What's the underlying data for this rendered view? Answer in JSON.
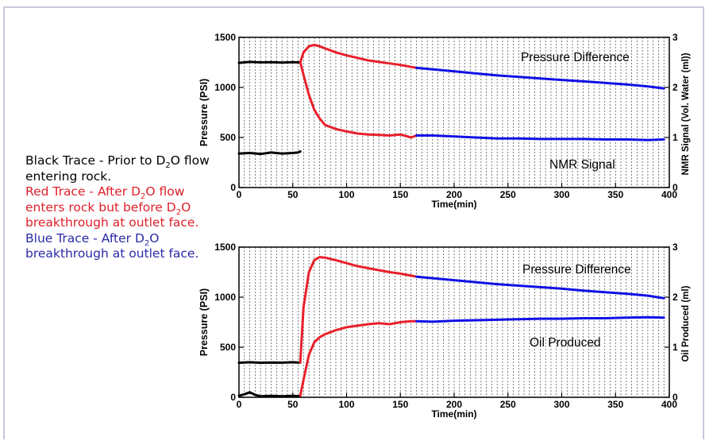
{
  "legend": {
    "entries": [
      {
        "color": "#000000",
        "pre": "Black Trace - Prior to D",
        "sub": "2",
        "post": "O flow entering rock.",
        "post2": ""
      },
      {
        "color": "#e0202a",
        "pre": "Red Trace - After D",
        "sub": "2",
        "post": "O flow enters rock but before D",
        "sub2": "2",
        "post2": "O breakthrough at outlet face."
      },
      {
        "color": "#2a2aa8",
        "pre": "Blue Trace - After D",
        "sub": "2",
        "post": "O breakthrough at outlet face.",
        "post2": ""
      }
    ]
  },
  "colors": {
    "black": "#000000",
    "red": "#e8202a",
    "blue": "#1010e6"
  },
  "chart_data": [
    {
      "type": "line",
      "xlabel": "Time(min)",
      "ylabel": "Pressure (PSI)",
      "y2label": "NMR Signal (Vol. Water (ml))",
      "xlim": [
        0,
        400
      ],
      "ylim": [
        0,
        1500
      ],
      "y2lim": [
        0,
        3
      ],
      "xticks": [
        0,
        50,
        100,
        150,
        200,
        250,
        300,
        350,
        400
      ],
      "yticks": [
        0,
        500,
        1000,
        1500
      ],
      "y2ticks": [
        0,
        1,
        2,
        3
      ],
      "grid": "vertical dashed lines",
      "annotations": [
        "Pressure Difference",
        "NMR Signal"
      ],
      "series": [
        {
          "color": "black",
          "axis": "left",
          "x": [
            0,
            10,
            20,
            30,
            40,
            50,
            55,
            57
          ],
          "y": [
            1245,
            1255,
            1250,
            1252,
            1248,
            1252,
            1250,
            1250
          ]
        },
        {
          "color": "black",
          "axis": "right",
          "x": [
            0,
            10,
            20,
            30,
            40,
            50,
            55,
            57
          ],
          "y": [
            0.68,
            0.69,
            0.67,
            0.7,
            0.68,
            0.69,
            0.7,
            0.72
          ]
        },
        {
          "color": "red",
          "axis": "left",
          "x": [
            57,
            60,
            65,
            70,
            75,
            80,
            90,
            100,
            110,
            120,
            130,
            140,
            150,
            160,
            165
          ],
          "y": [
            1250,
            1350,
            1410,
            1425,
            1410,
            1390,
            1350,
            1320,
            1295,
            1270,
            1255,
            1240,
            1225,
            1205,
            1195
          ]
        },
        {
          "color": "red",
          "axis": "right",
          "x": [
            57,
            60,
            65,
            70,
            75,
            80,
            90,
            100,
            110,
            120,
            130,
            140,
            150,
            155,
            160,
            165
          ],
          "y": [
            2.5,
            2.25,
            1.85,
            1.55,
            1.38,
            1.25,
            1.17,
            1.12,
            1.08,
            1.06,
            1.05,
            1.04,
            1.06,
            1.03,
            1.0,
            1.04
          ]
        },
        {
          "color": "blue",
          "axis": "left",
          "x": [
            165,
            180,
            200,
            220,
            240,
            260,
            280,
            300,
            320,
            340,
            360,
            380,
            395
          ],
          "y": [
            1195,
            1180,
            1160,
            1140,
            1120,
            1105,
            1090,
            1075,
            1060,
            1045,
            1030,
            1010,
            990
          ]
        },
        {
          "color": "blue",
          "axis": "right",
          "x": [
            165,
            180,
            200,
            220,
            240,
            260,
            280,
            300,
            320,
            340,
            360,
            380,
            395
          ],
          "y": [
            1.04,
            1.04,
            1.02,
            1.0,
            0.98,
            0.98,
            0.97,
            0.97,
            0.97,
            0.96,
            0.96,
            0.95,
            0.96
          ]
        }
      ]
    },
    {
      "type": "line",
      "xlabel": "Time(min)",
      "ylabel": "Pressure (PSI)",
      "y2label": "Oil Produced (ml)",
      "xlim": [
        0,
        400
      ],
      "ylim": [
        0,
        1500
      ],
      "y2lim": [
        0,
        3
      ],
      "xticks": [
        0,
        50,
        100,
        150,
        200,
        250,
        300,
        350,
        400
      ],
      "yticks": [
        0,
        500,
        1000,
        1500
      ],
      "y2ticks": [
        0,
        1,
        2,
        3
      ],
      "grid": "vertical dashed lines",
      "annotations": [
        "Pressure Difference",
        "Oil Produced"
      ],
      "series": [
        {
          "color": "black",
          "axis": "left",
          "x": [
            0,
            10,
            20,
            30,
            40,
            50,
            55,
            57
          ],
          "y": [
            345,
            350,
            345,
            348,
            346,
            350,
            348,
            348
          ]
        },
        {
          "color": "black",
          "axis": "right",
          "x": [
            0,
            5,
            10,
            15,
            20,
            30,
            40,
            50,
            55,
            57
          ],
          "y": [
            0.03,
            0.06,
            0.1,
            0.05,
            0.02,
            0.03,
            0.02,
            0.03,
            0.02,
            0.03
          ]
        },
        {
          "color": "red",
          "axis": "left",
          "x": [
            57,
            60,
            65,
            70,
            75,
            80,
            90,
            100,
            110,
            120,
            130,
            140,
            150,
            160,
            165
          ],
          "y": [
            348,
            900,
            1250,
            1370,
            1400,
            1395,
            1370,
            1340,
            1310,
            1290,
            1270,
            1250,
            1235,
            1215,
            1205
          ]
        },
        {
          "color": "red",
          "axis": "right",
          "x": [
            57,
            60,
            65,
            70,
            75,
            80,
            90,
            100,
            110,
            120,
            130,
            140,
            150,
            160,
            165
          ],
          "y": [
            0.03,
            0.35,
            0.85,
            1.1,
            1.2,
            1.26,
            1.34,
            1.4,
            1.43,
            1.46,
            1.48,
            1.46,
            1.5,
            1.52,
            1.52
          ]
        },
        {
          "color": "blue",
          "axis": "left",
          "x": [
            165,
            180,
            200,
            220,
            240,
            260,
            280,
            300,
            320,
            340,
            360,
            380,
            395
          ],
          "y": [
            1205,
            1190,
            1170,
            1150,
            1130,
            1115,
            1100,
            1085,
            1065,
            1050,
            1035,
            1015,
            990
          ]
        },
        {
          "color": "blue",
          "axis": "right",
          "x": [
            165,
            180,
            200,
            220,
            240,
            260,
            280,
            300,
            320,
            340,
            360,
            380,
            395
          ],
          "y": [
            1.52,
            1.51,
            1.53,
            1.54,
            1.55,
            1.56,
            1.57,
            1.57,
            1.58,
            1.58,
            1.59,
            1.6,
            1.59
          ]
        }
      ]
    }
  ]
}
